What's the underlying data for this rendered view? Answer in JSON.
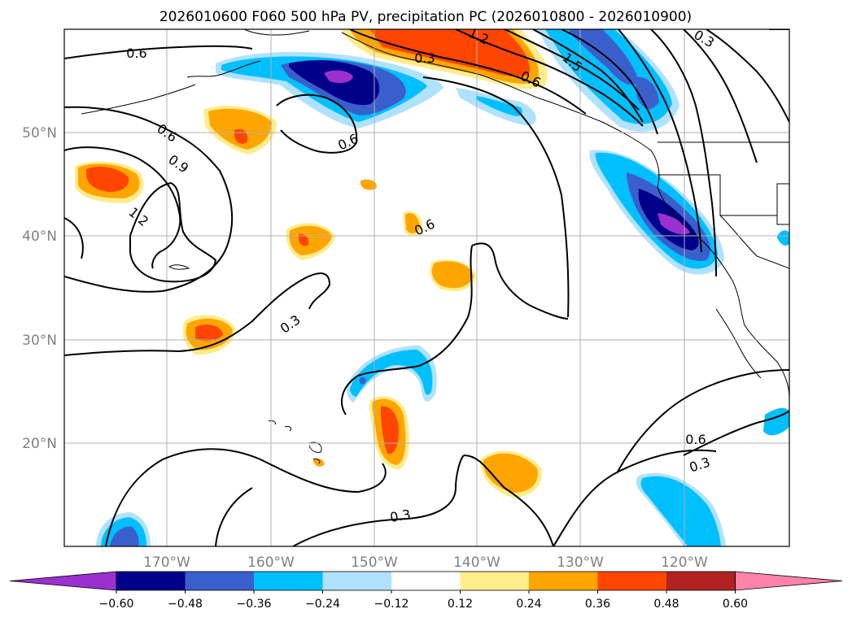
{
  "title": "2026010600 F060 500 hPa PV, precipitation PC (2026010800 - 2026010900)",
  "map": {
    "lat_labels": [
      "50°N",
      "40°N",
      "30°N",
      "20°N"
    ],
    "lon_labels": [
      "170°W",
      "160°W",
      "150°W",
      "140°W",
      "130°W",
      "120°W"
    ],
    "contour_labels": [
      "0.6",
      "0.6",
      "0.9",
      "1.2",
      "0.6",
      "0.3",
      "1.2",
      "1.5",
      "0.6",
      "0.6",
      "0.3",
      "0.3",
      "0.6",
      "0.3",
      "0.3"
    ]
  },
  "colorbar": {
    "ticks": [
      "−0.60",
      "−0.48",
      "−0.36",
      "−0.24",
      "−0.12",
      "0.12",
      "0.24",
      "0.36",
      "0.48",
      "0.60"
    ],
    "colors": [
      "#9b30d0",
      "#00008b",
      "#3a5fcd",
      "#00bfff",
      "#b0e2ff",
      "#ffffff",
      "#ffec8b",
      "#ffa500",
      "#ff4500",
      "#b22222",
      "#ff82ab"
    ]
  }
}
